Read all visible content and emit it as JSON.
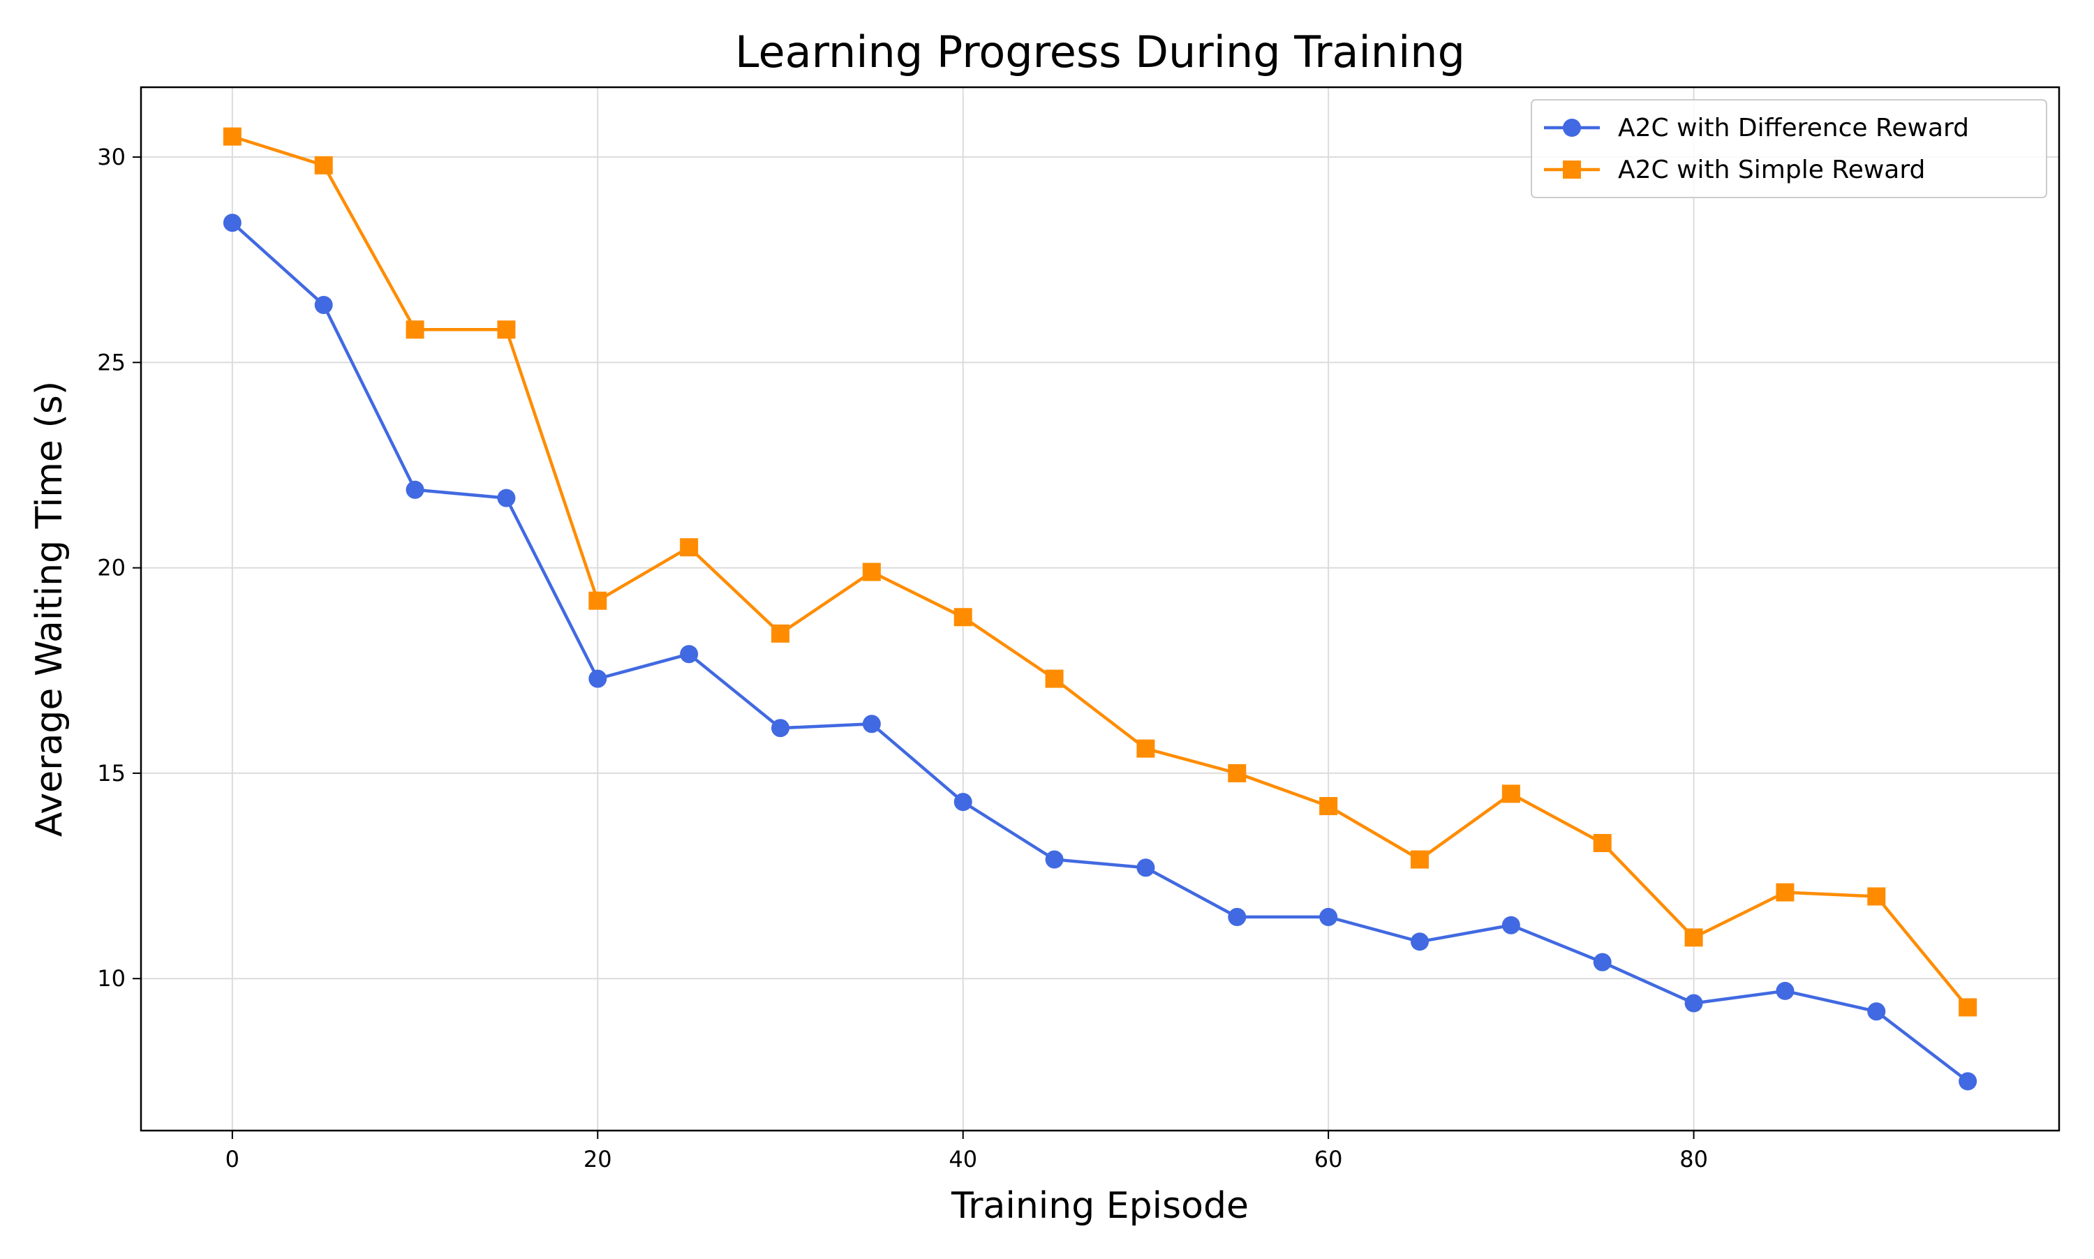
{
  "chart_data": {
    "type": "line",
    "title": "Learning Progress During Training",
    "xlabel": "Training Episode",
    "ylabel": "Average Waiting Time (s)",
    "xlim": [
      -5,
      100
    ],
    "ylim": [
      6.3,
      31.7
    ],
    "x_ticks": [
      0,
      20,
      40,
      60,
      80
    ],
    "y_ticks": [
      10,
      15,
      20,
      25,
      30
    ],
    "x_tick_labels": [
      "0",
      "20",
      "40",
      "60",
      "80"
    ],
    "y_tick_labels": [
      "10",
      "15",
      "20",
      "25",
      "30"
    ],
    "grid": true,
    "legend_position": "top-right",
    "x": [
      0,
      5,
      10,
      15,
      20,
      25,
      30,
      35,
      40,
      45,
      50,
      55,
      60,
      65,
      70,
      75,
      80,
      85,
      90,
      95
    ],
    "series": [
      {
        "name": "A2C with Difference Reward",
        "color": "#4169e1",
        "marker": "circle",
        "values": [
          28.4,
          26.4,
          21.9,
          21.7,
          17.3,
          17.9,
          16.1,
          16.2,
          14.3,
          12.9,
          12.7,
          11.5,
          11.5,
          10.9,
          11.3,
          10.4,
          9.4,
          9.7,
          9.2,
          7.5
        ]
      },
      {
        "name": "A2C with Simple Reward",
        "color": "#ff8c00",
        "marker": "square",
        "values": [
          30.5,
          29.8,
          25.8,
          25.8,
          19.2,
          20.5,
          18.4,
          19.9,
          18.8,
          17.3,
          15.6,
          15.0,
          14.2,
          12.9,
          14.5,
          13.3,
          11.0,
          12.1,
          12.0,
          9.3
        ]
      }
    ]
  }
}
